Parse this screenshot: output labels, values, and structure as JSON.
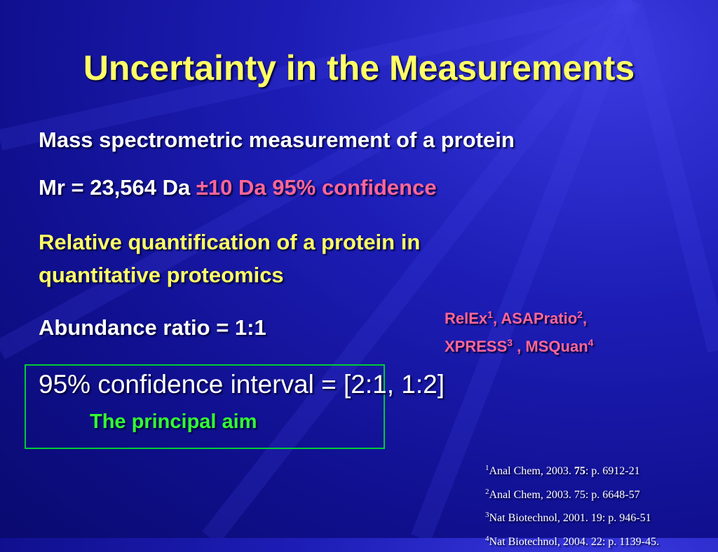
{
  "title": "Uncertainty in the Measurements",
  "line1": "Mass spectrometric measurement of a protein",
  "line2": {
    "mass": "Mr = 23,564 Da",
    "error": "±10 Da",
    "confidence": "95% confidence"
  },
  "line3": [
    "Relative quantification of a protein in",
    "quantitative proteomics"
  ],
  "line4": "Abundance ratio = 1:1",
  "tools": [
    {
      "name": "RelEx",
      "ref": "1",
      "sep": ", "
    },
    {
      "name": "ASAPratio",
      "ref": "2",
      "sep": ","
    },
    {
      "name": "XPRESS",
      "ref": "3",
      "sep": " , "
    },
    {
      "name": "MSQuan",
      "ref": "4"
    }
  ],
  "box": {
    "interval": "95% confidence interval = [2:1, 1:2]",
    "aim": "The principal aim"
  },
  "references": [
    {
      "num": "1",
      "pre": "Anal Chem, 2003. ",
      "bold": "75",
      "post": ": p. 6912-21"
    },
    {
      "num": "2",
      "text": "Anal Chem, 2003. 75: p. 6648-57"
    },
    {
      "num": "3",
      "text": "Nat Biotechnol, 2001. 19: p. 946-51"
    },
    {
      "num": "4",
      "text": "Nat Biotechnol, 2004. 22: p. 1139-45."
    }
  ]
}
